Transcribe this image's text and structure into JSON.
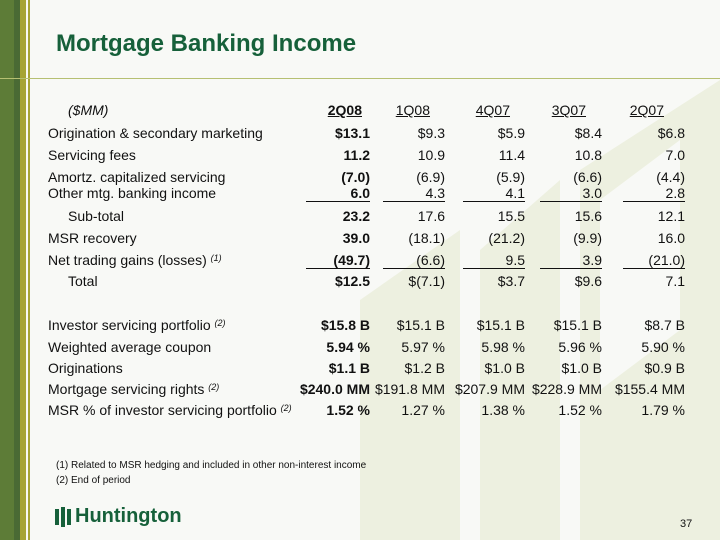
{
  "title": "Mortgage Banking Income",
  "table": {
    "unit_label": "($MM)",
    "columns": [
      "2Q08",
      "1Q08",
      "4Q07",
      "3Q07",
      "2Q07"
    ],
    "rows": [
      {
        "label": "Origination & secondary marketing",
        "values": [
          "$13.1",
          "$9.3",
          "$5.9",
          "$8.4",
          "$6.8"
        ]
      },
      {
        "label": "Servicing fees",
        "values": [
          "11.2",
          "10.9",
          "11.4",
          "10.8",
          "7.0"
        ]
      },
      {
        "label": "Amortz. capitalized servicing",
        "values": [
          "(7.0)",
          "(6.9)",
          "(5.9)",
          "(6.6)",
          "(4.4)"
        ]
      },
      {
        "label": "Other mtg. banking income",
        "values": [
          "6.0",
          "4.3",
          "4.1",
          "3.0",
          "2.8"
        ],
        "underline": true
      },
      {
        "label": "Sub-total",
        "values": [
          "23.2",
          "17.6",
          "15.5",
          "15.6",
          "12.1"
        ],
        "indent": true
      },
      {
        "label": "MSR recovery",
        "values": [
          "39.0",
          "(18.1)",
          "(21.2)",
          "(9.9)",
          "16.0"
        ]
      },
      {
        "label": "Net trading gains (losses)",
        "note": "(1)",
        "values": [
          "(49.7)",
          "(6.6)",
          "9.5",
          "3.9",
          "(21.0)"
        ],
        "underline": true
      },
      {
        "label": "Total",
        "values": [
          "$12.5",
          "$(7.1)",
          "$3.7",
          "$9.6",
          "7.1"
        ],
        "indent": true
      }
    ],
    "metrics": [
      {
        "label": "Investor servicing portfolio",
        "note": "(2)",
        "values": [
          "$15.8 B",
          "$15.1 B",
          "$15.1 B",
          "$15.1 B",
          "$8.7 B"
        ]
      },
      {
        "label": "Weighted average coupon",
        "values": [
          "5.94 %",
          "5.97 %",
          "5.98 %",
          "5.96 %",
          "5.90 %"
        ]
      },
      {
        "label": "Originations",
        "values": [
          "$1.1 B",
          "$1.2 B",
          "$1.0 B",
          "$1.0 B",
          "$0.9 B"
        ]
      },
      {
        "label": "Mortgage servicing rights",
        "note": "(2)",
        "values": [
          "$240.0 MM",
          "$191.8 MM",
          "$207.9 MM",
          "$228.9 MM",
          "$155.4  MM"
        ]
      },
      {
        "label": "MSR % of investor  servicing portfolio",
        "note": "(2)",
        "values": [
          "1.52 %",
          "1.27 %",
          "1.38 %",
          "1.52 %",
          "1.79 %"
        ]
      }
    ]
  },
  "footnotes": [
    "(1)  Related to MSR hedging and included in other non-interest income",
    "(2)  End of period"
  ],
  "logo_text": "Huntington",
  "page_number": "37",
  "colors": {
    "brand_green": "#16603a",
    "olive": "#a6a435"
  }
}
